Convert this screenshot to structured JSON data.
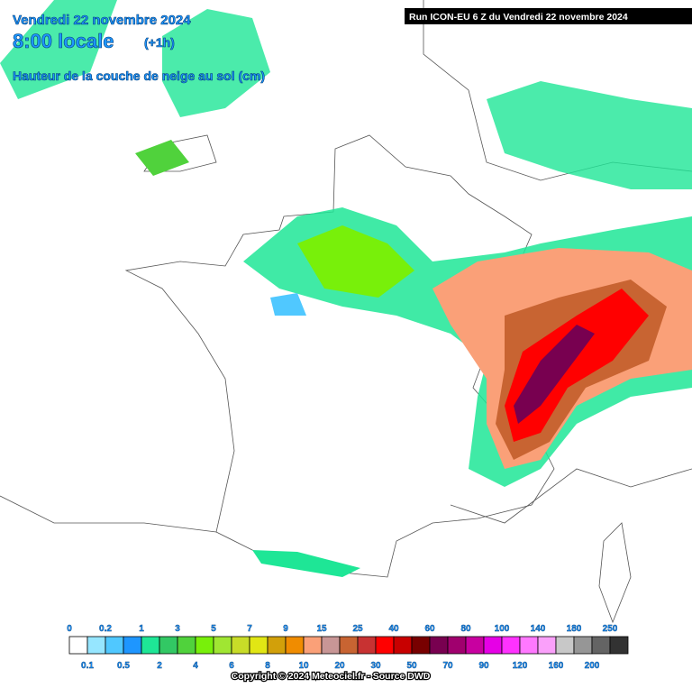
{
  "header": {
    "date": "Vendredi 22 novembre 2024",
    "time": "8:00 locale",
    "offset": "(+1h)",
    "parameter": "Hauteur de la couche de neige au sol (cm)",
    "run": "Run ICON-EU 6 Z du Vendredi 22 novembre 2024"
  },
  "legend": {
    "items": [
      {
        "label": "0",
        "color": "#ffffff"
      },
      {
        "label": "0.1",
        "color": "#96e6ff"
      },
      {
        "label": "0.2",
        "color": "#50c8ff"
      },
      {
        "label": "0.5",
        "color": "#1e96ff"
      },
      {
        "label": "1",
        "color": "#1ee696"
      },
      {
        "label": "2",
        "color": "#32c864"
      },
      {
        "label": "3",
        "color": "#50d23c"
      },
      {
        "label": "4",
        "color": "#78f00a"
      },
      {
        "label": "5",
        "color": "#a0e632"
      },
      {
        "label": "6",
        "color": "#c8dc28"
      },
      {
        "label": "7",
        "color": "#e1e614"
      },
      {
        "label": "8",
        "color": "#d2a00a"
      },
      {
        "label": "9",
        "color": "#f08c00"
      },
      {
        "label": "10",
        "color": "#faa078"
      },
      {
        "label": "15",
        "color": "#c89696"
      },
      {
        "label": "20",
        "color": "#c86432"
      },
      {
        "label": "25",
        "color": "#c83232"
      },
      {
        "label": "30",
        "color": "#ff0000"
      },
      {
        "label": "40",
        "color": "#c80000"
      },
      {
        "label": "50",
        "color": "#780000"
      },
      {
        "label": "60",
        "color": "#780050"
      },
      {
        "label": "70",
        "color": "#a0006e"
      },
      {
        "label": "80",
        "color": "#c800a0"
      },
      {
        "label": "90",
        "color": "#e600e6"
      },
      {
        "label": "100",
        "color": "#ff32ff"
      },
      {
        "label": "120",
        "color": "#ff78ff"
      },
      {
        "label": "140",
        "color": "#faa0fa"
      },
      {
        "label": "160",
        "color": "#c8c8c8"
      },
      {
        "label": "180",
        "color": "#969696"
      },
      {
        "label": "200",
        "color": "#646464"
      },
      {
        "label": "250",
        "color": "#323232"
      }
    ]
  },
  "footer": {
    "copyright": "Copyright © 2024 Meteociel.fr - Source DWD"
  }
}
